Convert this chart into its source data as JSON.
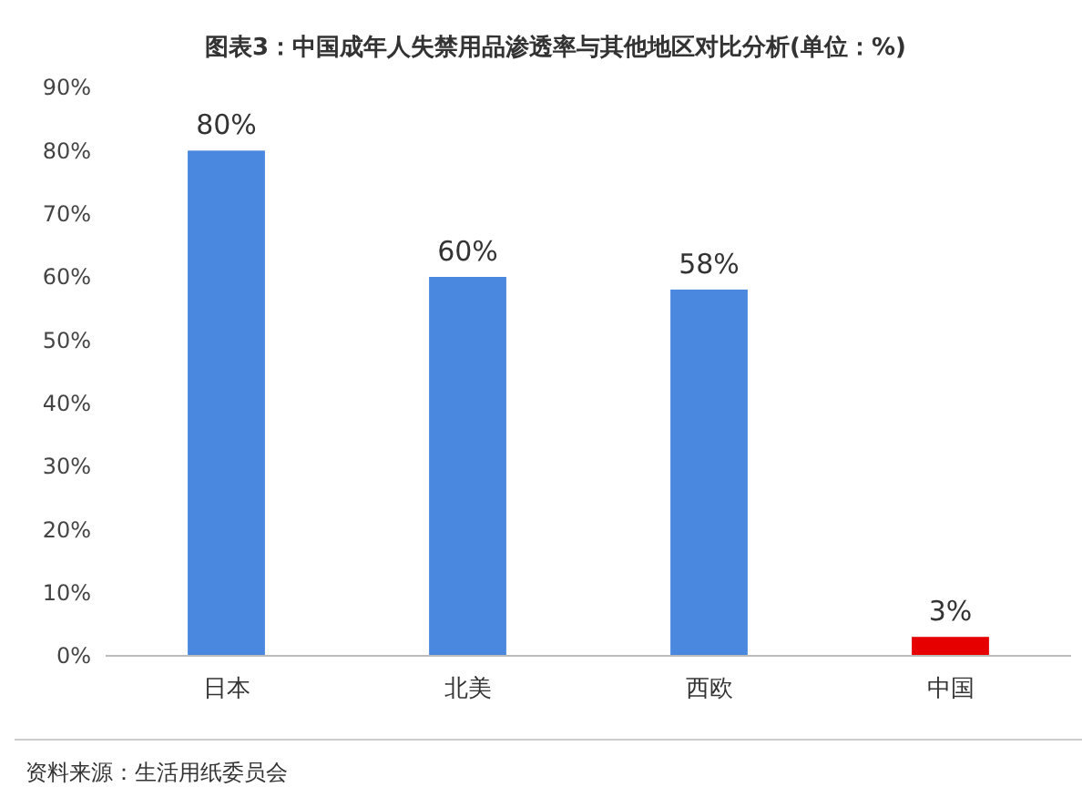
{
  "chart_data": {
    "type": "bar",
    "title": "图表3：中国成年人失禁用品渗透率与其他地区对比分析(单位：%)",
    "categories": [
      "日本",
      "北美",
      "西欧",
      "中国"
    ],
    "values": [
      80,
      60,
      58,
      3
    ],
    "colors": [
      "#4a88e0",
      "#4a88e0",
      "#4a88e0",
      "#e60000"
    ],
    "value_labels": [
      "80%",
      "60%",
      "58%",
      "3%"
    ],
    "ylim": [
      0,
      90
    ],
    "yticks": [
      {
        "value": 0,
        "label": "0%"
      },
      {
        "value": 10,
        "label": "10%"
      },
      {
        "value": 20,
        "label": "20%"
      },
      {
        "value": 30,
        "label": "30%"
      },
      {
        "value": 40,
        "label": "40%"
      },
      {
        "value": 50,
        "label": "50%"
      },
      {
        "value": 60,
        "label": "60%"
      },
      {
        "value": 70,
        "label": "70%"
      },
      {
        "value": 80,
        "label": "80%"
      },
      {
        "value": 90,
        "label": "90%"
      }
    ],
    "grid": false,
    "annotations": [
      "资料来源：生活用纸委员会"
    ]
  }
}
